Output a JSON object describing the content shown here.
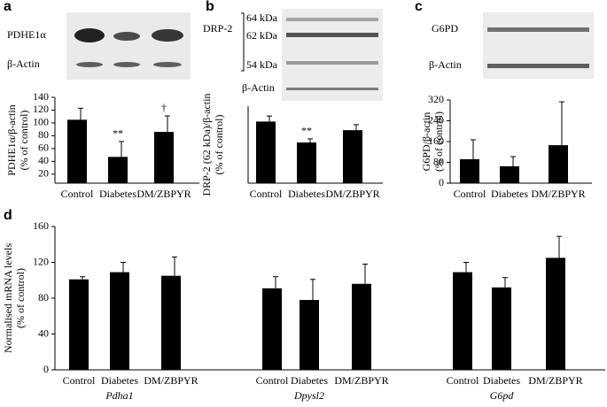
{
  "chart_data": [
    {
      "type": "bar",
      "panel": "a",
      "blot": {
        "rows": [
          "PDHE1α",
          "β-Actin"
        ]
      },
      "ylabel": [
        "PDHE1α/β-actin",
        "(% of control)"
      ],
      "categories": [
        "Control",
        "Diabetes",
        "DM/ZBPYR"
      ],
      "values": [
        105,
        47,
        86
      ],
      "errors": [
        18,
        24,
        25
      ],
      "annotations": [
        null,
        "**",
        "†"
      ],
      "color": "#000000",
      "ylim": [
        6,
        140
      ],
      "yticks": [
        20,
        40,
        60,
        80,
        100,
        120,
        140
      ]
    },
    {
      "type": "bar",
      "panel": "b",
      "blot": {
        "label": "DRP-2",
        "markers": [
          "64 kDa",
          "62 kDa",
          "54 kDa"
        ],
        "rows": [
          "β-Actin"
        ]
      },
      "ylabel": [
        "DRP-2 (62 kDa)/β-actin",
        "(% of control)"
      ],
      "categories": [
        "Control",
        "Diabetes",
        "DM/ZBPYR"
      ],
      "values": [
        100,
        66,
        86
      ],
      "errors": [
        9,
        6,
        9
      ],
      "annotations": [
        null,
        "**",
        null
      ],
      "color": "#000000",
      "ylim": [
        0,
        125
      ]
    },
    {
      "type": "bar",
      "panel": "c",
      "blot": {
        "rows": [
          "G6PD",
          "β-Actin"
        ]
      },
      "ylabel": [
        "G6PD/β-actin",
        "(% of control)"
      ],
      "categories": [
        "Control",
        "Diabetes",
        "DM/ZBPYR"
      ],
      "values": [
        92,
        65,
        146
      ],
      "errors": [
        75,
        37,
        167
      ],
      "color": "#000000",
      "ylim": [
        0,
        320
      ],
      "yticks": [
        0,
        80,
        160,
        240,
        320
      ]
    },
    {
      "type": "grouped-bar",
      "panel": "d",
      "ylabel": [
        "Normalised mRNA levels",
        "(% of control)"
      ],
      "groups": [
        {
          "name": "Pdha1",
          "categories": [
            "Control",
            "Diabetes",
            "DM/ZBPYR"
          ],
          "values": [
            101,
            109,
            105
          ],
          "errors": [
            3,
            11,
            21
          ]
        },
        {
          "name": "Dpysl2",
          "categories": [
            "Control",
            "Diabetes",
            "DM/ZBPYR"
          ],
          "values": [
            91,
            78,
            96
          ],
          "errors": [
            13,
            23,
            22
          ]
        },
        {
          "name": "G6pd",
          "categories": [
            "Control",
            "Diabetes",
            "DM/ZBPYR"
          ],
          "values": [
            109,
            92,
            125
          ],
          "errors": [
            11,
            11,
            24
          ]
        }
      ],
      "color": "#000000",
      "ylim": [
        0,
        160
      ],
      "yticks": [
        0,
        40,
        80,
        120,
        160
      ]
    }
  ]
}
